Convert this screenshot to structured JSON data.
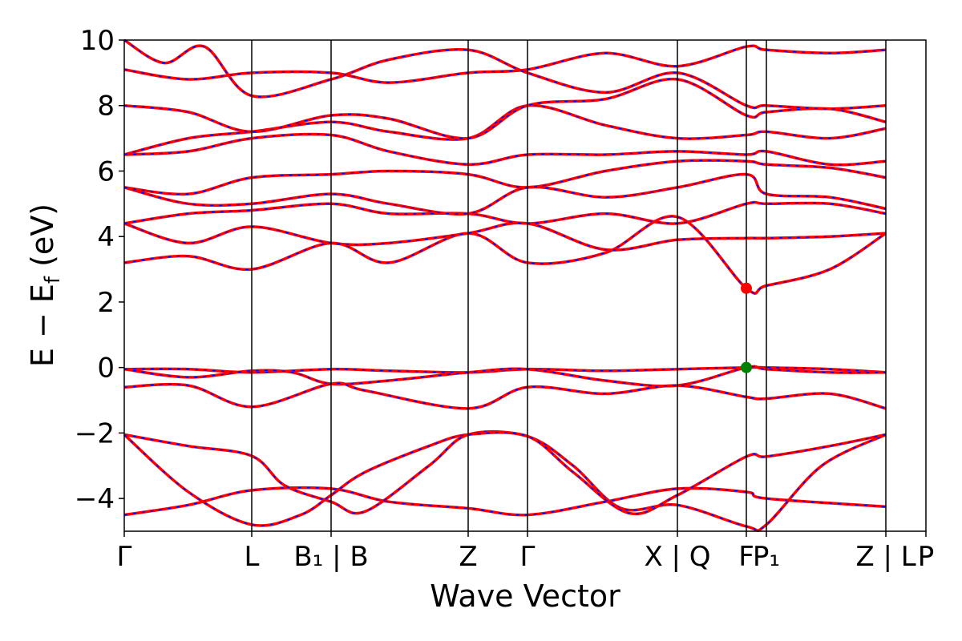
{
  "chart_data": {
    "type": "line",
    "title": "",
    "xlabel": "Wave Vector",
    "ylabel": "E − E",
    "ylabel_sub": "f",
    "ylabel_unit": " (eV)",
    "ylim": [
      -5,
      10
    ],
    "yticks": [
      {
        "value": 10,
        "label": "10"
      },
      {
        "value": 8,
        "label": "8"
      },
      {
        "value": 6,
        "label": "6"
      },
      {
        "value": 4,
        "label": "4"
      },
      {
        "value": 2,
        "label": "2"
      },
      {
        "value": 0,
        "label": "0"
      },
      {
        "value": -2,
        "label": "−2"
      },
      {
        "value": -4,
        "label": "−4"
      }
    ],
    "kpoints": [
      {
        "pos": 0.0,
        "label": "Γ"
      },
      {
        "pos": 0.159,
        "label": "L"
      },
      {
        "pos": 0.258,
        "label": "B₁ | B"
      },
      {
        "pos": 0.429,
        "label": "Z"
      },
      {
        "pos": 0.503,
        "label": "Γ"
      },
      {
        "pos": 0.69,
        "label": "X | Q"
      },
      {
        "pos": 0.776,
        "label": "F"
      },
      {
        "pos": 0.801,
        "label": "P₁"
      },
      {
        "pos": 0.95,
        "label": "Z | L"
      },
      {
        "pos": 1.0,
        "label": "P"
      }
    ],
    "grid": false,
    "colors": {
      "band_primary": "#ff0000",
      "band_overlay": "#0000ff",
      "kline": "#000000",
      "cbm_marker": "#ff0000",
      "vbm_marker": "#008000"
    },
    "markers": [
      {
        "name": "CBM",
        "x": 0.776,
        "y": 2.42,
        "color": "#ff0000"
      },
      {
        "name": "VBM",
        "x": 0.776,
        "y": 0.0,
        "color": "#008000"
      }
    ],
    "series": [
      {
        "values": [
          [
            0.0,
            -4.5
          ],
          [
            0.08,
            -4.2
          ],
          [
            0.159,
            -3.75
          ],
          [
            0.258,
            -3.7
          ],
          [
            0.33,
            -4.1
          ],
          [
            0.429,
            -4.3
          ],
          [
            0.503,
            -4.5
          ],
          [
            0.6,
            -4.1
          ],
          [
            0.69,
            -3.7
          ],
          [
            0.776,
            -3.8
          ],
          [
            0.801,
            -4.0
          ],
          [
            0.95,
            -4.25
          ]
        ]
      },
      {
        "values": [
          [
            0.0,
            -2.05
          ],
          [
            0.08,
            -2.4
          ],
          [
            0.159,
            -2.7
          ],
          [
            0.2,
            -3.6
          ],
          [
            0.258,
            -4.1
          ],
          [
            0.3,
            -4.4
          ],
          [
            0.38,
            -3.0
          ],
          [
            0.429,
            -2.05
          ],
          [
            0.503,
            -2.1
          ],
          [
            0.56,
            -3.0
          ],
          [
            0.62,
            -4.3
          ],
          [
            0.69,
            -4.2
          ],
          [
            0.776,
            -4.85
          ],
          [
            0.801,
            -4.8
          ],
          [
            0.87,
            -3.0
          ],
          [
            0.95,
            -2.05
          ]
        ]
      },
      {
        "values": [
          [
            0.0,
            -2.05
          ],
          [
            0.08,
            -3.8
          ],
          [
            0.159,
            -4.8
          ],
          [
            0.22,
            -4.5
          ],
          [
            0.258,
            -3.9
          ],
          [
            0.3,
            -3.2
          ],
          [
            0.38,
            -2.4
          ],
          [
            0.429,
            -2.05
          ],
          [
            0.503,
            -2.1
          ],
          [
            0.56,
            -3.2
          ],
          [
            0.63,
            -4.45
          ],
          [
            0.69,
            -3.9
          ],
          [
            0.776,
            -2.72
          ],
          [
            0.801,
            -2.72
          ],
          [
            0.88,
            -2.4
          ],
          [
            0.95,
            -2.05
          ]
        ]
      },
      {
        "values": [
          [
            0.0,
            -0.05
          ],
          [
            0.08,
            -0.05
          ],
          [
            0.159,
            -0.15
          ],
          [
            0.258,
            -0.05
          ],
          [
            0.33,
            -0.1
          ],
          [
            0.429,
            -0.15
          ],
          [
            0.503,
            -0.05
          ],
          [
            0.6,
            -0.1
          ],
          [
            0.69,
            -0.05
          ],
          [
            0.776,
            0.0
          ],
          [
            0.801,
            0.0
          ],
          [
            0.88,
            -0.05
          ],
          [
            0.95,
            -0.15
          ]
        ]
      },
      {
        "values": [
          [
            0.0,
            -0.05
          ],
          [
            0.08,
            -0.3
          ],
          [
            0.159,
            -0.1
          ],
          [
            0.21,
            -0.15
          ],
          [
            0.258,
            -0.5
          ],
          [
            0.33,
            -0.4
          ],
          [
            0.429,
            -0.15
          ],
          [
            0.503,
            -0.05
          ],
          [
            0.6,
            -0.4
          ],
          [
            0.69,
            -0.55
          ],
          [
            0.776,
            0.0
          ],
          [
            0.801,
            -0.05
          ],
          [
            0.88,
            -0.15
          ],
          [
            0.95,
            -0.15
          ]
        ]
      },
      {
        "values": [
          [
            0.0,
            -0.6
          ],
          [
            0.08,
            -0.55
          ],
          [
            0.159,
            -1.2
          ],
          [
            0.258,
            -0.5
          ],
          [
            0.3,
            -0.7
          ],
          [
            0.429,
            -1.25
          ],
          [
            0.503,
            -0.6
          ],
          [
            0.6,
            -0.8
          ],
          [
            0.69,
            -0.55
          ],
          [
            0.776,
            -0.9
          ],
          [
            0.801,
            -0.95
          ],
          [
            0.88,
            -0.8
          ],
          [
            0.95,
            -1.25
          ]
        ]
      },
      {
        "values": [
          [
            0.0,
            3.2
          ],
          [
            0.08,
            3.4
          ],
          [
            0.159,
            3.0
          ],
          [
            0.258,
            3.8
          ],
          [
            0.33,
            3.2
          ],
          [
            0.429,
            4.1
          ],
          [
            0.503,
            3.2
          ],
          [
            0.6,
            3.5
          ],
          [
            0.69,
            4.6
          ],
          [
            0.776,
            2.42
          ],
          [
            0.801,
            2.5
          ],
          [
            0.88,
            3.0
          ],
          [
            0.95,
            4.1
          ]
        ]
      },
      {
        "values": [
          [
            0.0,
            4.4
          ],
          [
            0.08,
            3.8
          ],
          [
            0.159,
            4.3
          ],
          [
            0.258,
            3.8
          ],
          [
            0.33,
            3.8
          ],
          [
            0.429,
            4.1
          ],
          [
            0.503,
            4.4
          ],
          [
            0.6,
            3.6
          ],
          [
            0.69,
            3.9
          ],
          [
            0.776,
            3.95
          ],
          [
            0.801,
            3.95
          ],
          [
            0.88,
            4.0
          ],
          [
            0.95,
            4.1
          ]
        ]
      },
      {
        "values": [
          [
            0.0,
            4.4
          ],
          [
            0.08,
            4.7
          ],
          [
            0.159,
            4.8
          ],
          [
            0.258,
            5.0
          ],
          [
            0.33,
            4.7
          ],
          [
            0.429,
            4.7
          ],
          [
            0.503,
            4.4
          ],
          [
            0.6,
            4.7
          ],
          [
            0.69,
            4.4
          ],
          [
            0.776,
            5.0
          ],
          [
            0.801,
            5.0
          ],
          [
            0.88,
            5.0
          ],
          [
            0.95,
            4.7
          ]
        ]
      },
      {
        "values": [
          [
            0.0,
            5.5
          ],
          [
            0.08,
            5.0
          ],
          [
            0.159,
            5.0
          ],
          [
            0.258,
            5.3
          ],
          [
            0.33,
            5.0
          ],
          [
            0.429,
            4.7
          ],
          [
            0.503,
            5.5
          ],
          [
            0.6,
            5.2
          ],
          [
            0.69,
            5.5
          ],
          [
            0.776,
            5.9
          ],
          [
            0.801,
            5.3
          ],
          [
            0.88,
            5.2
          ],
          [
            0.95,
            4.85
          ]
        ]
      },
      {
        "values": [
          [
            0.0,
            5.5
          ],
          [
            0.08,
            5.3
          ],
          [
            0.159,
            5.8
          ],
          [
            0.258,
            5.9
          ],
          [
            0.33,
            6.0
          ],
          [
            0.429,
            5.9
          ],
          [
            0.503,
            5.5
          ],
          [
            0.6,
            6.0
          ],
          [
            0.69,
            6.3
          ],
          [
            0.776,
            6.3
          ],
          [
            0.801,
            6.2
          ],
          [
            0.88,
            6.1
          ],
          [
            0.95,
            5.8
          ]
        ]
      },
      {
        "values": [
          [
            0.0,
            6.5
          ],
          [
            0.08,
            6.6
          ],
          [
            0.159,
            7.0
          ],
          [
            0.258,
            7.1
          ],
          [
            0.33,
            6.6
          ],
          [
            0.429,
            6.2
          ],
          [
            0.503,
            6.5
          ],
          [
            0.6,
            6.5
          ],
          [
            0.69,
            6.6
          ],
          [
            0.776,
            6.5
          ],
          [
            0.801,
            6.6
          ],
          [
            0.88,
            6.2
          ],
          [
            0.95,
            6.3
          ]
        ]
      },
      {
        "values": [
          [
            0.0,
            6.5
          ],
          [
            0.08,
            7.0
          ],
          [
            0.159,
            7.2
          ],
          [
            0.258,
            7.5
          ],
          [
            0.33,
            7.2
          ],
          [
            0.429,
            7.0
          ],
          [
            0.503,
            8.0
          ],
          [
            0.6,
            7.4
          ],
          [
            0.69,
            7.0
          ],
          [
            0.776,
            7.1
          ],
          [
            0.801,
            7.2
          ],
          [
            0.88,
            7.0
          ],
          [
            0.95,
            7.3
          ]
        ]
      },
      {
        "values": [
          [
            0.0,
            8.0
          ],
          [
            0.08,
            7.8
          ],
          [
            0.159,
            7.2
          ],
          [
            0.258,
            7.7
          ],
          [
            0.33,
            7.6
          ],
          [
            0.429,
            7.0
          ],
          [
            0.503,
            8.0
          ],
          [
            0.6,
            8.2
          ],
          [
            0.69,
            8.8
          ],
          [
            0.776,
            7.7
          ],
          [
            0.801,
            7.8
          ],
          [
            0.88,
            7.9
          ],
          [
            0.95,
            7.5
          ]
        ]
      },
      {
        "values": [
          [
            0.0,
            9.1
          ],
          [
            0.08,
            8.8
          ],
          [
            0.159,
            9.0
          ],
          [
            0.258,
            9.0
          ],
          [
            0.33,
            8.7
          ],
          [
            0.429,
            9.0
          ],
          [
            0.503,
            9.1
          ],
          [
            0.6,
            9.6
          ],
          [
            0.69,
            9.2
          ],
          [
            0.776,
            9.8
          ],
          [
            0.801,
            9.7
          ],
          [
            0.88,
            9.6
          ],
          [
            0.95,
            9.7
          ]
        ]
      },
      {
        "values": [
          [
            0.0,
            10.0
          ],
          [
            0.05,
            9.3
          ],
          [
            0.1,
            9.8
          ],
          [
            0.159,
            8.3
          ],
          [
            0.258,
            8.8
          ],
          [
            0.33,
            9.4
          ],
          [
            0.429,
            9.7
          ],
          [
            0.503,
            9.0
          ],
          [
            0.6,
            8.4
          ],
          [
            0.69,
            9.0
          ],
          [
            0.776,
            8.0
          ],
          [
            0.801,
            8.0
          ],
          [
            0.88,
            7.9
          ],
          [
            0.95,
            8.0
          ]
        ]
      }
    ]
  }
}
